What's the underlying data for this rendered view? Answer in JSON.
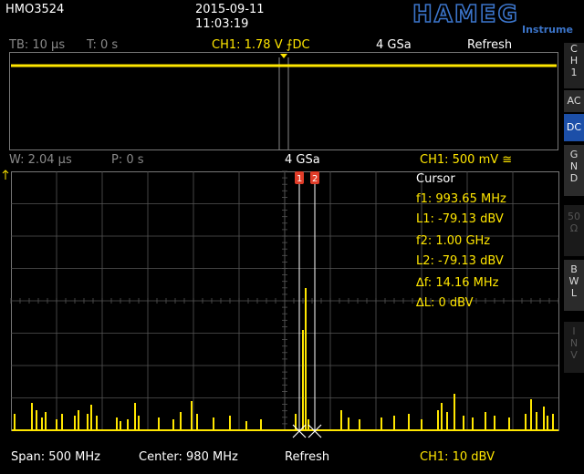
{
  "header": {
    "model": "HMO3524",
    "date": "2015-09-11",
    "time": "11:03:19",
    "brand": "HAMEG",
    "brand_sub": "Instruments"
  },
  "status_bar": {
    "timebase": "TB: 10 µs",
    "trigger_time": "T: 0 s",
    "trigger_level": "CH1: 1.78 V",
    "trigger_slope_symbol": "⨍",
    "coupling": "DC",
    "sample_rate": "4 GSa",
    "mode": "Refresh"
  },
  "zoom_bar": {
    "window": "W: 2.04 µs",
    "position": "P: 0 s",
    "sample_rate": "4 GSa",
    "channel_scale": "CH1: 500 mV",
    "coupling_symbol": "≅"
  },
  "side_panel": {
    "channel_label": [
      "C",
      "H",
      "1"
    ],
    "ac": "AC",
    "dc": "DC",
    "gnd": [
      "G",
      "N",
      "D"
    ],
    "ohm50": [
      "50",
      "Ω"
    ],
    "bwl": [
      "B",
      "W",
      "L"
    ],
    "inv": [
      "I",
      "N",
      "V"
    ]
  },
  "cursor_panel": {
    "title": "Cursor",
    "f1": "f1: 993.65 MHz",
    "l1": "L1: -79.13 dBV",
    "f2": "f2: 1.00 GHz",
    "l2": "L2: -79.13 dBV",
    "df": "∆f: 14.16 MHz",
    "dl": "∆L: 0 dBV",
    "marker1": "1",
    "marker2": "2"
  },
  "footer": {
    "span": "Span: 500 MHz",
    "center": "Center: 980 MHz",
    "mode": "Refresh",
    "scale": "CH1: 10 dBV"
  },
  "colors": {
    "trace": "#ffe600",
    "grid": "#555555",
    "active_button": "#1c4fa8",
    "cursor_marker": "#e03c28"
  }
}
